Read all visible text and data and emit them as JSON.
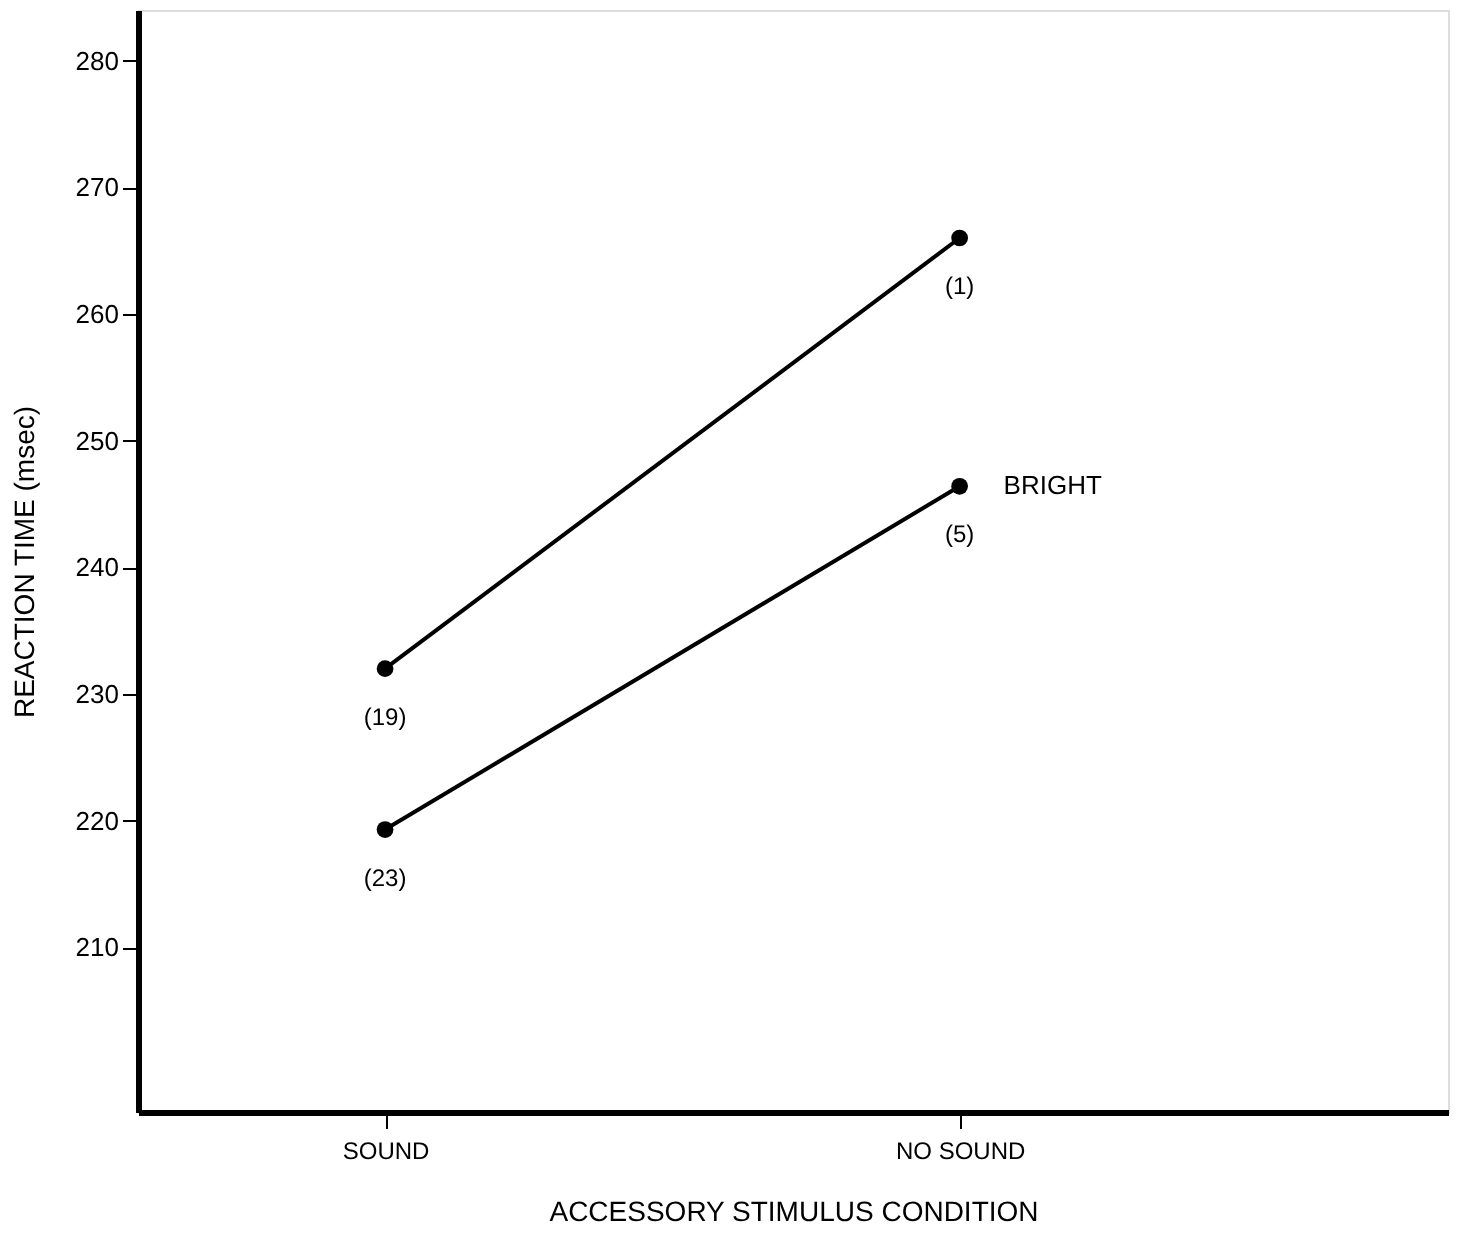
{
  "chart_data": {
    "type": "line",
    "xlabel": "ACCESSORY STIMULUS CONDITION",
    "ylabel": "REACTION TIME (msec)",
    "categories": [
      "SOUND",
      "NO SOUND"
    ],
    "series": [
      {
        "color": "#000000",
        "values": [
          232,
          266
        ]
      },
      {
        "name": "BRIGHT",
        "color": "#000000",
        "values": [
          219.3,
          246.4
        ]
      }
    ],
    "ylim": [
      197,
      284
    ],
    "yticks": [
      210,
      220,
      230,
      240,
      250,
      260,
      270,
      280
    ],
    "annotations": [
      {
        "text": "(19)",
        "x": "SOUND",
        "y": 232
      },
      {
        "text": "(23)",
        "x": "SOUND",
        "y": 219.3
      },
      {
        "text": "(1)",
        "x": "NO SOUND",
        "y": 266
      },
      {
        "text": "(5)",
        "x": "NO SOUND",
        "y": 246.4
      }
    ],
    "marker": "circle",
    "line_style": "solid",
    "grid": false
  }
}
